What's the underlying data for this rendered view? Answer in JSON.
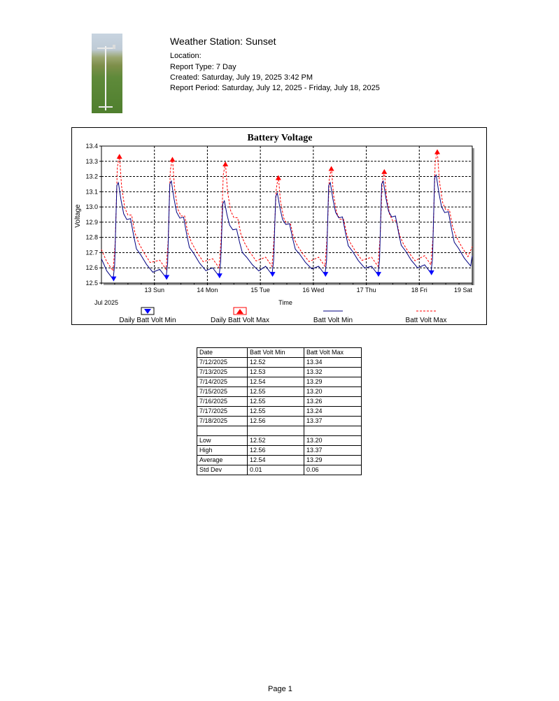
{
  "header": {
    "station": "Weather Station: Sunset",
    "location": "Location:",
    "report_type": "Report Type: 7 Day",
    "created": "Created: Saturday, July 19, 2025 3:42 PM",
    "period": "Report Period: Saturday, July 12, 2025 - Friday, July 18, 2025"
  },
  "chart_data": {
    "type": "line",
    "title": "Battery Voltage",
    "xlabel": "Time",
    "ylabel": "Voltage",
    "ylim": [
      12.5,
      13.4
    ],
    "y_ticks": [
      "12.5",
      "12.6",
      "12.7",
      "12.8",
      "12.9",
      "13.0",
      "13.1",
      "13.2",
      "13.3",
      "13.4"
    ],
    "x_start_label": "Jul 2025",
    "x_ticks": [
      "13 Sun",
      "14 Mon",
      "15 Tue",
      "16 Wed",
      "17 Thu",
      "18 Fri",
      "19 Sat"
    ],
    "grid": true,
    "legend_position": "bottom",
    "series": [
      {
        "name": "Daily Batt Volt Min",
        "kind": "marker-down",
        "color": "#0000ff",
        "points": [
          [
            0.23,
            12.52
          ],
          [
            1.23,
            12.53
          ],
          [
            2.23,
            12.54
          ],
          [
            3.23,
            12.55
          ],
          [
            4.23,
            12.55
          ],
          [
            5.23,
            12.55
          ],
          [
            6.23,
            12.56
          ]
        ]
      },
      {
        "name": "Daily Batt Volt Max",
        "kind": "marker-up",
        "color": "#ff0000",
        "points": [
          [
            0.34,
            13.34
          ],
          [
            1.34,
            13.32
          ],
          [
            2.34,
            13.29
          ],
          [
            3.34,
            13.2
          ],
          [
            4.34,
            13.26
          ],
          [
            5.34,
            13.24
          ],
          [
            6.34,
            13.37
          ]
        ]
      },
      {
        "name": "Batt Volt Min",
        "kind": "solid",
        "color": "#000080"
      },
      {
        "name": "Batt Volt Max",
        "kind": "dashed",
        "color": "#ff0000"
      }
    ],
    "daily_min": [
      12.52,
      12.53,
      12.54,
      12.55,
      12.55,
      12.55,
      12.56
    ],
    "daily_max": [
      13.34,
      13.32,
      13.29,
      13.2,
      13.26,
      13.24,
      13.37
    ],
    "daily_peak_min": [
      13.16,
      13.17,
      13.04,
      13.09,
      13.16,
      13.17,
      13.21
    ]
  },
  "table": {
    "headers": [
      "Date",
      "Batt Volt Min",
      "Batt Volt Max"
    ],
    "rows": [
      [
        "7/12/2025",
        "12.52",
        "13.34"
      ],
      [
        "7/13/2025",
        "12.53",
        "13.32"
      ],
      [
        "7/14/2025",
        "12.54",
        "13.29"
      ],
      [
        "7/15/2025",
        "12.55",
        "13.20"
      ],
      [
        "7/16/2025",
        "12.55",
        "13.26"
      ],
      [
        "7/17/2025",
        "12.55",
        "13.24"
      ],
      [
        "7/18/2025",
        "12.56",
        "13.37"
      ],
      [
        "",
        "",
        ""
      ],
      [
        "Low",
        "12.52",
        "13.20"
      ],
      [
        "High",
        "12.56",
        "13.37"
      ],
      [
        "Average",
        "12.54",
        "13.29"
      ],
      [
        "Std Dev",
        "0.01",
        "0.06"
      ]
    ]
  },
  "footer": {
    "page": "Page 1"
  }
}
